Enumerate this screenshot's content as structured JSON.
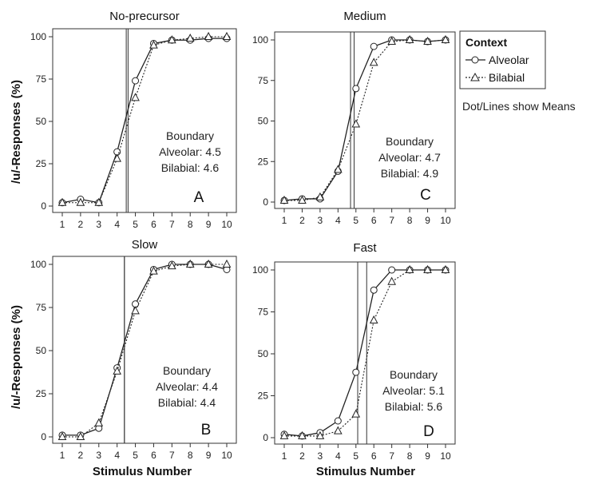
{
  "chart_data": [
    {
      "type": "line",
      "title": "No-precursor",
      "panel_letter": "A",
      "x": [
        1,
        2,
        3,
        4,
        5,
        6,
        7,
        8,
        9,
        10
      ],
      "ylim": [
        0,
        100
      ],
      "xlim": [
        1,
        10
      ],
      "yticks": [
        0,
        25,
        50,
        75,
        100
      ],
      "series": [
        {
          "name": "Alveolar",
          "values": [
            2,
            4,
            2,
            32,
            74,
            96,
            98,
            98,
            99,
            99
          ]
        },
        {
          "name": "Bilabial",
          "values": [
            2,
            2,
            2,
            28,
            64,
            95,
            98,
            99,
            100,
            100
          ]
        }
      ],
      "boundaries": [
        4.5,
        4.6
      ],
      "boundary_label": "Boundary",
      "boundary_lines": [
        "Alveolar: 4.5",
        "Bilabial:  4.6"
      ]
    },
    {
      "type": "line",
      "title": "Medium",
      "panel_letter": "C",
      "x": [
        1,
        2,
        3,
        4,
        5,
        6,
        7,
        8,
        9,
        10
      ],
      "ylim": [
        0,
        100
      ],
      "xlim": [
        1,
        10
      ],
      "yticks": [
        0,
        25,
        50,
        75,
        100
      ],
      "series": [
        {
          "name": "Alveolar",
          "values": [
            1,
            2,
            2,
            19,
            70,
            96,
            100,
            100,
            99,
            100
          ]
        },
        {
          "name": "Bilabial",
          "values": [
            1,
            1,
            3,
            20,
            48,
            86,
            99,
            100,
            99,
            100
          ]
        }
      ],
      "boundaries": [
        4.7,
        4.9
      ],
      "boundary_label": "Boundary",
      "boundary_lines": [
        "Alveolar: 4.7",
        "Bilabial:  4.9"
      ]
    },
    {
      "type": "line",
      "title": "Slow",
      "panel_letter": "B",
      "x": [
        1,
        2,
        3,
        4,
        5,
        6,
        7,
        8,
        9,
        10
      ],
      "ylim": [
        0,
        100
      ],
      "xlim": [
        1,
        10
      ],
      "yticks": [
        0,
        25,
        50,
        75,
        100
      ],
      "series": [
        {
          "name": "Alveolar",
          "values": [
            1,
            1,
            5,
            40,
            77,
            97,
            100,
            100,
            100,
            97
          ]
        },
        {
          "name": "Bilabial",
          "values": [
            0,
            0,
            8,
            38,
            73,
            96,
            99,
            100,
            100,
            100
          ]
        }
      ],
      "boundaries": [
        4.4,
        4.4
      ],
      "boundary_label": "Boundary",
      "boundary_lines": [
        "Alveolar: 4.4",
        "Bilabial:  4.4"
      ]
    },
    {
      "type": "line",
      "title": "Fast",
      "panel_letter": "D",
      "x": [
        1,
        2,
        3,
        4,
        5,
        6,
        7,
        8,
        9,
        10
      ],
      "ylim": [
        0,
        100
      ],
      "xlim": [
        1,
        10
      ],
      "yticks": [
        0,
        25,
        50,
        75,
        100
      ],
      "series": [
        {
          "name": "Alveolar",
          "values": [
            2,
            1,
            3,
            10,
            39,
            88,
            100,
            100,
            100,
            100
          ]
        },
        {
          "name": "Bilabial",
          "values": [
            1,
            1,
            1,
            4,
            14,
            70,
            93,
            100,
            100,
            100
          ]
        }
      ],
      "boundaries": [
        5.1,
        5.6
      ],
      "boundary_label": "Boundary",
      "boundary_lines": [
        "Alveolar: 5.1",
        "Bilabial:  5.6"
      ]
    }
  ],
  "ylabel": "/u/-Responses (%)",
  "xlabel": "Stimulus Number",
  "legend": {
    "title": "Context",
    "items": [
      {
        "label": "Alveolar",
        "line": "solid",
        "marker": "circle"
      },
      {
        "label": "Bilabial",
        "line": "dotted",
        "marker": "triangle"
      }
    ],
    "note": "Dot/Lines show Means"
  }
}
